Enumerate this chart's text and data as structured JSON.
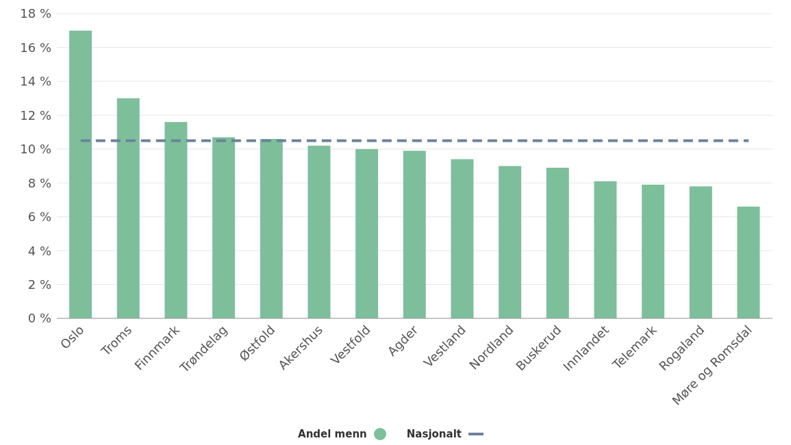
{
  "chart_data": {
    "type": "bar",
    "categories": [
      "Oslo",
      "Troms",
      "Finnmark",
      "Trøndelag",
      "Østfold",
      "Akershus",
      "Vestfold",
      "Agder",
      "Vestland",
      "Nordland",
      "Buskerud",
      "Innlandet",
      "Telemark",
      "Rogaland",
      "Møre og Romsdal"
    ],
    "series": [
      {
        "name": "Andel menn",
        "color": "#7dbf9b",
        "values": [
          17.0,
          13.0,
          11.6,
          10.7,
          10.6,
          10.2,
          10.0,
          9.9,
          9.4,
          9.0,
          8.9,
          8.1,
          7.9,
          7.8,
          6.6
        ]
      },
      {
        "name": "Nasjonalt",
        "type": "line",
        "color": "#6b8399",
        "line_style": "dashed",
        "values": [
          10.5,
          10.5,
          10.5,
          10.5,
          10.5,
          10.5,
          10.5,
          10.5,
          10.5,
          10.5,
          10.5,
          10.5,
          10.5,
          10.5,
          10.5
        ]
      }
    ],
    "ylim": [
      0,
      18
    ],
    "yticks": [
      {
        "value": 0,
        "label": "0 %"
      },
      {
        "value": 2,
        "label": "2 %"
      },
      {
        "value": 4,
        "label": "4 %"
      },
      {
        "value": 6,
        "label": "6 %"
      },
      {
        "value": 8,
        "label": "8 %"
      },
      {
        "value": 10,
        "label": "10 %"
      },
      {
        "value": 12,
        "label": "12 %"
      },
      {
        "value": 14,
        "label": "14 %"
      },
      {
        "value": 16,
        "label": "16 %"
      },
      {
        "value": 18,
        "label": "18 %"
      }
    ],
    "grid": "y",
    "legend": "bottom"
  }
}
